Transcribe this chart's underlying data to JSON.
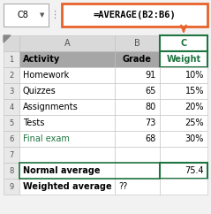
{
  "formula_bar_label": "C8",
  "formula_bar_text": "=AVERAGE(B2:B6)",
  "header_row": [
    "Activity",
    "Grade",
    "Weight"
  ],
  "data_rows": [
    [
      "Homework",
      "91",
      "10%"
    ],
    [
      "Quizzes",
      "65",
      "15%"
    ],
    [
      "Assignments",
      "80",
      "20%"
    ],
    [
      "Tests",
      "73",
      "25%"
    ],
    [
      "Final exam",
      "68",
      "30%"
    ]
  ],
  "summary_rows": [
    [
      "Normal average",
      "",
      "75.4"
    ],
    [
      "Weighted average",
      "??",
      ""
    ]
  ],
  "header_bg": "#a6a6a6",
  "col_c_selected_bg": "#ffffff",
  "col_c_header_text": "#1f7540",
  "formula_box_border": "#e8622a",
  "final_exam_color": "#1f7540",
  "row8_border_color": "#1f7540",
  "arrow_color": "#e8622a",
  "grid_color": "#c0c0c0",
  "rn_bg": "#e8e8e8",
  "col_header_bg": "#d9d9d9"
}
